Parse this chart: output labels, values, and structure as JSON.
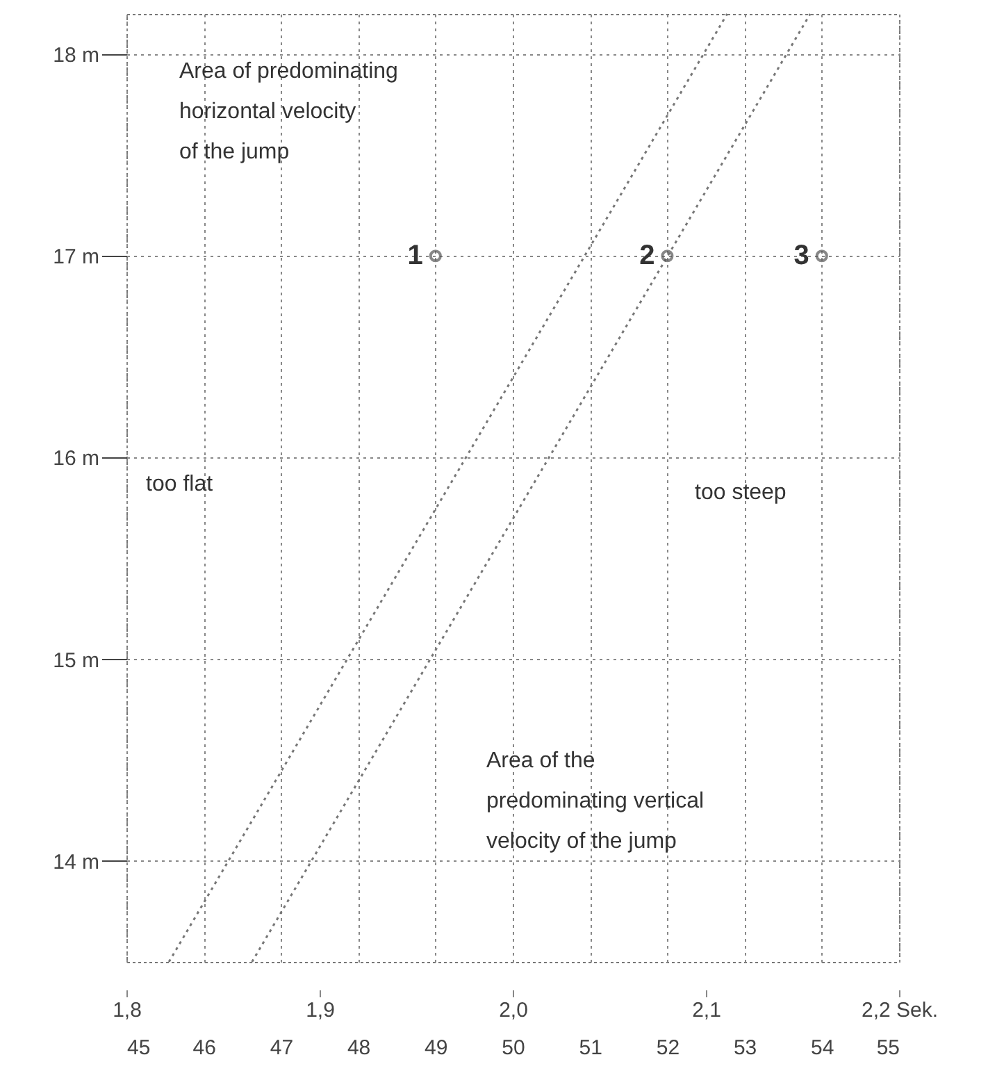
{
  "chart_data": {
    "type": "scatter",
    "xlim": [
      1.8,
      2.2
    ],
    "xticks": [
      {
        "value": 1.8,
        "label": "1,8"
      },
      {
        "value": 1.9,
        "label": "1,9"
      },
      {
        "value": 2.0,
        "label": "2,0"
      },
      {
        "value": 2.1,
        "label": "2,1"
      },
      {
        "value": 2.2,
        "label": "2,2 Sek."
      }
    ],
    "x2lim": [
      45,
      55
    ],
    "x2ticks": [
      45,
      46,
      47,
      48,
      49,
      50,
      51,
      52,
      53,
      54,
      55
    ],
    "ylim": [
      13.5,
      18.2
    ],
    "yticks": [
      {
        "value": 14,
        "label": "14 m"
      },
      {
        "value": 15,
        "label": "15 m"
      },
      {
        "value": 16,
        "label": "16 m"
      },
      {
        "value": 17,
        "label": "17 m"
      },
      {
        "value": 18,
        "label": "18 m"
      }
    ],
    "grid": true,
    "series": [
      {
        "type": "line",
        "x": [
          1.822,
          2.111
        ],
        "values": [
          13.5,
          18.2
        ],
        "color": "#777777",
        "line_style": "dotted"
      },
      {
        "type": "line",
        "x": [
          1.865,
          2.154
        ],
        "values": [
          13.5,
          18.2
        ],
        "color": "#777777",
        "line_style": "dotted"
      },
      {
        "x": [
          1.96,
          2.08,
          2.16
        ],
        "values": [
          17,
          17,
          17
        ],
        "color": "#555555",
        "marker": "circle"
      }
    ],
    "annotations": [
      {
        "text": "1",
        "x": 1.96,
        "y": 17
      },
      {
        "text": "2",
        "x": 2.08,
        "y": 17
      },
      {
        "text": "3",
        "x": 2.16,
        "y": 17
      },
      "Area of predominating\nhorizontal velocity\nof the jump",
      "too flat",
      "too steep",
      "Area of the\npredominating vertical\nvelocity of the jump"
    ]
  }
}
